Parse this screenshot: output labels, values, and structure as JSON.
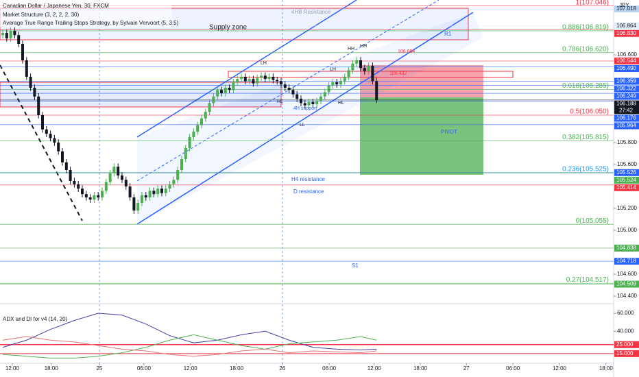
{
  "chart_data": [
    {
      "type": "candlestick",
      "title": "Canadian Dollar / Japanese Yen, 30, FXCM",
      "currency": "JPY",
      "indicators": [
        "Market Structure (3, 2, 2, 2, 30)",
        "Average True Range Trailing Stops Strategy, by Sylvain Vervoort (5, 3.5)"
      ],
      "annotations": [
        "Supply zone",
        "4HB Resistance",
        "R1",
        "H4 resistance",
        "D resistance",
        "PIVOT",
        "S1",
        "LH",
        "HH",
        "HH",
        "LH",
        "HL",
        "HL",
        "LL",
        "4H support",
        "106.604",
        "106.432"
      ],
      "xlim": [
        -0.69,
        153.62
      ],
      "xticks": [
        {
          "value": 2.4,
          "label": "12:00"
        },
        {
          "value": 12.2,
          "label": "18:00"
        },
        {
          "value": 24.3,
          "label": "25"
        },
        {
          "value": 35.5,
          "label": "06:00"
        },
        {
          "value": 47.2,
          "label": "12:00"
        },
        {
          "value": 58.8,
          "label": "18:00"
        },
        {
          "value": 70.3,
          "label": "26"
        },
        {
          "value": 82.1,
          "label": "06:00"
        },
        {
          "value": 93.4,
          "label": "12:00"
        },
        {
          "value": 105,
          "label": "18:00"
        },
        {
          "value": 116.6,
          "label": "27"
        },
        {
          "value": 128.3,
          "label": "06:00"
        },
        {
          "value": 140,
          "label": "12:00"
        },
        {
          "value": 151.7,
          "label": "18:00"
        }
      ],
      "ylim": [
        104.35,
        107.1
      ],
      "yticks": [
        {
          "value": 106.6,
          "label": "106.600"
        },
        {
          "value": 105.8,
          "label": "105.800"
        },
        {
          "value": 105.6,
          "label": "105.600"
        },
        {
          "value": 105.2,
          "label": "105.200"
        },
        {
          "value": 105.0,
          "label": "105.000"
        },
        {
          "value": 104.6,
          "label": "104.600"
        },
        {
          "value": 104.4,
          "label": "104.400"
        }
      ],
      "levels": [
        {
          "value": 107.018,
          "label": "107.018",
          "color": "#b7d3f2"
        },
        {
          "value": 106.864,
          "label": "106.864",
          "color": "#e3eefb"
        },
        {
          "value": 106.83,
          "label": "106.830",
          "color": "#f23645"
        },
        {
          "value": 106.544,
          "label": "106.544",
          "color": "#f23645"
        },
        {
          "value": 106.49,
          "label": "106.490",
          "color": "#2962ff"
        },
        {
          "value": 106.359,
          "label": "106.359",
          "color": "#2962ff"
        },
        {
          "value": 106.322,
          "label": "106.322",
          "color": "#2962ff"
        },
        {
          "value": 106.249,
          "label": "106.249",
          "color": "#2962ff"
        },
        {
          "value": 106.188,
          "label": "106.188",
          "color": "#131722",
          "countdown": "27:42"
        },
        {
          "value": 106.176,
          "label": "106.176",
          "color": "#2962ff"
        },
        {
          "value": 105.964,
          "label": "105.964",
          "color": "#2962ff"
        },
        {
          "value": 105.526,
          "label": "105.526",
          "color": "#2962ff"
        },
        {
          "value": 105.524,
          "label": "105.524",
          "color": "#4caf50"
        },
        {
          "value": 105.414,
          "label": "105.414",
          "color": "#f23645"
        },
        {
          "value": 104.838,
          "label": "104.838",
          "color": "#4caf50"
        },
        {
          "value": 104.718,
          "label": "104.718",
          "color": "#2962ff"
        },
        {
          "value": 104.509,
          "label": "104.509",
          "color": "#4caf50"
        }
      ],
      "fib_levels": [
        {
          "value": 107.046,
          "label": "1(107.046)",
          "color": "#f23645"
        },
        {
          "value": 106.819,
          "label": "0.886(106.819)",
          "color": "#4caf50"
        },
        {
          "value": 106.62,
          "label": "0.786(106.620)",
          "color": "#4caf50"
        },
        {
          "value": 106.285,
          "label": "0.618(106.285)",
          "color": "#4caf50"
        },
        {
          "value": 106.05,
          "label": "0.5(106.050)",
          "color": "#f23645"
        },
        {
          "value": 105.815,
          "label": "0.382(105.815)",
          "color": "#4caf50"
        },
        {
          "value": 105.525,
          "label": "0.236(105.525)",
          "color": "#2196f3"
        },
        {
          "value": 105.055,
          "label": "0(105.055)",
          "color": "#4caf50"
        },
        {
          "value": 104.517,
          "label": "0.27(104.517)",
          "color": "#4caf50"
        }
      ],
      "up_color": "#4caf50",
      "down_color": "#131722",
      "candles": [
        [
          106.78,
          106.83,
          106.75,
          106.8
        ],
        [
          106.8,
          106.83,
          106.72,
          106.75
        ],
        [
          106.75,
          106.85,
          106.72,
          106.82
        ],
        [
          106.82,
          106.85,
          106.75,
          106.78
        ],
        [
          106.78,
          106.81,
          106.67,
          106.7
        ],
        [
          106.7,
          106.73,
          106.52,
          106.55
        ],
        [
          106.55,
          106.58,
          106.37,
          106.4
        ],
        [
          106.4,
          106.43,
          106.27,
          106.3
        ],
        [
          106.3,
          106.33,
          106.19,
          106.22
        ],
        [
          106.22,
          106.25,
          106.02,
          106.05
        ],
        [
          106.05,
          106.08,
          105.89,
          105.92
        ],
        [
          105.92,
          105.95,
          105.85,
          105.88
        ],
        [
          105.88,
          105.91,
          105.81,
          105.84
        ],
        [
          105.84,
          105.87,
          105.77,
          105.8
        ],
        [
          105.8,
          105.83,
          105.69,
          105.72
        ],
        [
          105.72,
          105.75,
          105.59,
          105.62
        ],
        [
          105.62,
          105.65,
          105.52,
          105.55
        ],
        [
          105.55,
          105.58,
          105.42,
          105.45
        ],
        [
          105.45,
          105.48,
          105.39,
          105.42
        ],
        [
          105.42,
          105.45,
          105.35,
          105.38
        ],
        [
          105.38,
          105.41,
          105.3,
          105.33
        ],
        [
          105.33,
          105.36,
          105.27,
          105.3
        ],
        [
          105.3,
          105.33,
          105.25,
          105.28
        ],
        [
          105.28,
          105.35,
          105.25,
          105.32
        ],
        [
          105.32,
          105.35,
          105.27,
          105.3
        ],
        [
          105.3,
          105.39,
          105.27,
          105.36
        ],
        [
          105.36,
          105.47,
          105.33,
          105.44
        ],
        [
          105.44,
          105.55,
          105.41,
          105.52
        ],
        [
          105.52,
          105.61,
          105.49,
          105.58
        ],
        [
          105.58,
          105.61,
          105.47,
          105.5
        ],
        [
          105.5,
          105.53,
          105.43,
          105.46
        ],
        [
          105.46,
          105.49,
          105.37,
          105.4
        ],
        [
          105.4,
          105.43,
          105.27,
          105.3
        ],
        [
          105.3,
          105.33,
          105.15,
          105.18
        ],
        [
          105.18,
          105.28,
          105.15,
          105.25
        ],
        [
          105.25,
          105.35,
          105.22,
          105.32
        ],
        [
          105.32,
          105.35,
          105.27,
          105.3
        ],
        [
          105.3,
          105.39,
          105.27,
          105.36
        ],
        [
          105.36,
          105.39,
          105.3,
          105.33
        ],
        [
          105.33,
          105.41,
          105.3,
          105.38
        ],
        [
          105.38,
          105.41,
          105.31,
          105.34
        ],
        [
          105.34,
          105.41,
          105.31,
          105.38
        ],
        [
          105.38,
          105.45,
          105.35,
          105.42
        ],
        [
          105.42,
          105.49,
          105.39,
          105.46
        ],
        [
          105.46,
          105.58,
          105.43,
          105.55
        ],
        [
          105.55,
          105.68,
          105.52,
          105.65
        ],
        [
          105.65,
          105.78,
          105.62,
          105.75
        ],
        [
          105.75,
          105.88,
          105.72,
          105.85
        ],
        [
          105.85,
          105.93,
          105.82,
          105.9
        ],
        [
          105.9,
          105.99,
          105.87,
          105.96
        ],
        [
          105.96,
          106.05,
          105.93,
          106.02
        ],
        [
          106.02,
          106.11,
          105.99,
          106.08
        ],
        [
          106.08,
          106.19,
          106.05,
          106.16
        ],
        [
          106.16,
          106.25,
          106.13,
          106.22
        ],
        [
          106.22,
          106.31,
          106.19,
          106.28
        ],
        [
          106.28,
          106.31,
          106.22,
          106.25
        ],
        [
          106.25,
          106.33,
          106.22,
          106.3
        ],
        [
          106.3,
          106.33,
          106.25,
          106.28
        ],
        [
          106.28,
          106.38,
          106.25,
          106.35
        ],
        [
          106.35,
          106.41,
          106.32,
          106.38
        ],
        [
          106.38,
          106.43,
          106.35,
          106.4
        ],
        [
          106.4,
          106.43,
          106.33,
          106.36
        ],
        [
          106.36,
          106.41,
          106.33,
          106.38
        ],
        [
          106.38,
          106.41,
          106.31,
          106.34
        ],
        [
          106.34,
          106.42,
          106.31,
          106.39
        ],
        [
          106.39,
          106.44,
          106.36,
          106.41
        ],
        [
          106.41,
          106.44,
          106.35,
          106.38
        ],
        [
          106.38,
          106.43,
          106.35,
          106.4
        ],
        [
          106.4,
          106.43,
          106.34,
          106.37
        ],
        [
          106.37,
          106.4,
          106.33,
          106.36
        ],
        [
          106.36,
          106.39,
          106.3,
          106.33
        ],
        [
          106.33,
          106.36,
          106.27,
          106.3
        ],
        [
          106.3,
          106.33,
          106.25,
          106.28
        ],
        [
          106.28,
          106.31,
          106.21,
          106.24
        ],
        [
          106.24,
          106.27,
          106.17,
          106.2
        ],
        [
          106.2,
          106.23,
          106.13,
          106.16
        ],
        [
          106.16,
          106.19,
          106.11,
          106.14
        ],
        [
          106.14,
          106.2,
          106.11,
          106.17
        ],
        [
          106.17,
          106.2,
          106.12,
          106.15
        ],
        [
          106.15,
          106.21,
          106.12,
          106.18
        ],
        [
          106.18,
          106.25,
          106.15,
          106.22
        ],
        [
          106.22,
          106.29,
          106.19,
          106.26
        ],
        [
          106.26,
          106.35,
          106.23,
          106.32
        ],
        [
          106.32,
          106.38,
          106.29,
          106.35
        ],
        [
          106.35,
          106.38,
          106.3,
          106.33
        ],
        [
          106.33,
          106.39,
          106.3,
          106.36
        ],
        [
          106.36,
          106.43,
          106.33,
          106.4
        ],
        [
          106.4,
          106.49,
          106.37,
          106.46
        ],
        [
          106.46,
          106.55,
          106.43,
          106.52
        ],
        [
          106.52,
          106.58,
          106.49,
          106.55
        ],
        [
          106.55,
          106.58,
          106.45,
          106.48
        ],
        [
          106.48,
          106.51,
          106.42,
          106.45
        ],
        [
          106.45,
          106.53,
          106.42,
          106.5
        ],
        [
          106.5,
          106.53,
          106.33,
          106.36
        ],
        [
          106.36,
          106.39,
          106.16,
          106.188
        ]
      ]
    },
    {
      "type": "line",
      "title": "ADX and DI for v4 (14, 20)",
      "x": [
        0,
        6,
        12,
        18,
        24,
        30,
        36,
        42,
        48,
        54,
        60,
        66,
        72,
        78,
        84,
        90,
        94
      ],
      "ylim": [
        4.2,
        66.9
      ],
      "yticks": [
        {
          "value": 60,
          "label": "60.000"
        },
        {
          "value": 40,
          "label": "40.000"
        }
      ],
      "levels": [
        {
          "value": 25,
          "label": "25.000",
          "color": "#f23645"
        },
        {
          "value": 15,
          "label": "15.000",
          "color": "#f23645"
        }
      ],
      "series": [
        {
          "color": "#3f3fa8",
          "values": [
            22,
            30,
            42,
            52,
            60,
            58,
            48,
            35,
            27,
            30,
            36,
            40,
            30,
            22,
            20,
            19,
            20
          ]
        },
        {
          "color": "#4caf50",
          "values": [
            14,
            12,
            10,
            10,
            12,
            16,
            22,
            30,
            36,
            30,
            24,
            20,
            26,
            28,
            30,
            34,
            30
          ]
        },
        {
          "color": "#e57373",
          "values": [
            30,
            34,
            30,
            28,
            24,
            20,
            18,
            14,
            12,
            14,
            18,
            20,
            16,
            18,
            17,
            16,
            18
          ]
        }
      ]
    }
  ]
}
